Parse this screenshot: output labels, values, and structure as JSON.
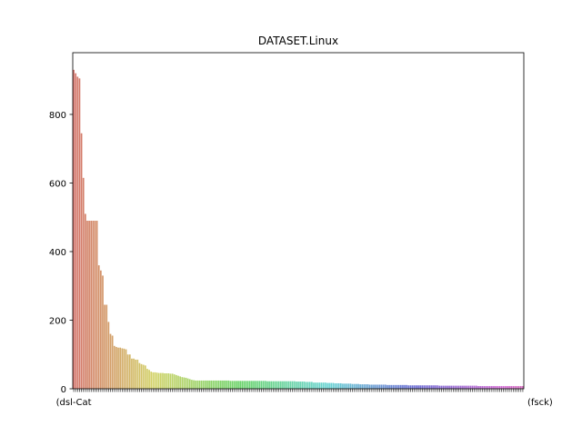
{
  "chart_data": {
    "type": "bar",
    "title": "DATASET.Linux",
    "xlabel": "",
    "ylabel": "",
    "ylim": [
      0,
      980
    ],
    "yticks": [
      0,
      200,
      400,
      600,
      800
    ],
    "grid": false,
    "legend": "none",
    "first_category_label": "(dsl-Cat",
    "last_category_label": "(fsck)",
    "values": [
      930,
      920,
      910,
      905,
      745,
      615,
      510,
      490,
      490,
      490,
      490,
      490,
      490,
      360,
      345,
      330,
      245,
      245,
      195,
      160,
      155,
      125,
      122,
      120,
      120,
      118,
      117,
      115,
      100,
      100,
      88,
      88,
      85,
      85,
      75,
      72,
      70,
      68,
      58,
      55,
      50,
      48,
      48,
      47,
      46,
      46,
      46,
      45,
      45,
      45,
      44,
      44,
      42,
      40,
      38,
      36,
      34,
      33,
      32,
      30,
      28,
      26,
      25,
      24,
      24,
      24,
      24,
      24,
      24,
      24,
      24,
      24,
      24,
      24,
      24,
      24,
      24,
      24,
      24,
      24,
      24,
      23,
      23,
      23,
      23,
      23,
      23,
      23,
      23,
      23,
      23,
      23,
      23,
      23,
      23,
      23,
      23,
      23,
      23,
      23,
      22,
      22,
      22,
      22,
      22,
      22,
      22,
      22,
      22,
      22,
      22,
      22,
      22,
      22,
      22,
      21,
      21,
      21,
      21,
      21,
      20,
      20,
      20,
      20,
      18,
      18,
      18,
      18,
      18,
      18,
      18,
      17,
      17,
      17,
      17,
      16,
      16,
      16,
      16,
      15,
      15,
      15,
      15,
      15,
      14,
      14,
      14,
      14,
      13,
      13,
      13,
      13,
      13,
      12,
      12,
      12,
      12,
      12,
      12,
      12,
      12,
      12,
      11,
      11,
      11,
      11,
      11,
      11,
      11,
      11,
      11,
      11,
      11,
      10,
      10,
      10,
      10,
      10,
      10,
      10,
      10,
      10,
      10,
      10,
      10,
      10,
      10,
      10,
      10,
      9,
      9,
      9,
      9,
      9,
      9,
      9,
      9,
      9,
      9,
      9,
      9,
      9,
      9,
      9,
      9,
      9,
      9,
      9,
      9,
      8,
      8,
      8,
      8,
      8,
      8,
      8,
      8,
      8,
      8,
      8,
      8,
      8,
      8,
      8,
      8,
      8,
      8,
      8,
      8,
      8,
      8,
      8,
      8
    ]
  }
}
